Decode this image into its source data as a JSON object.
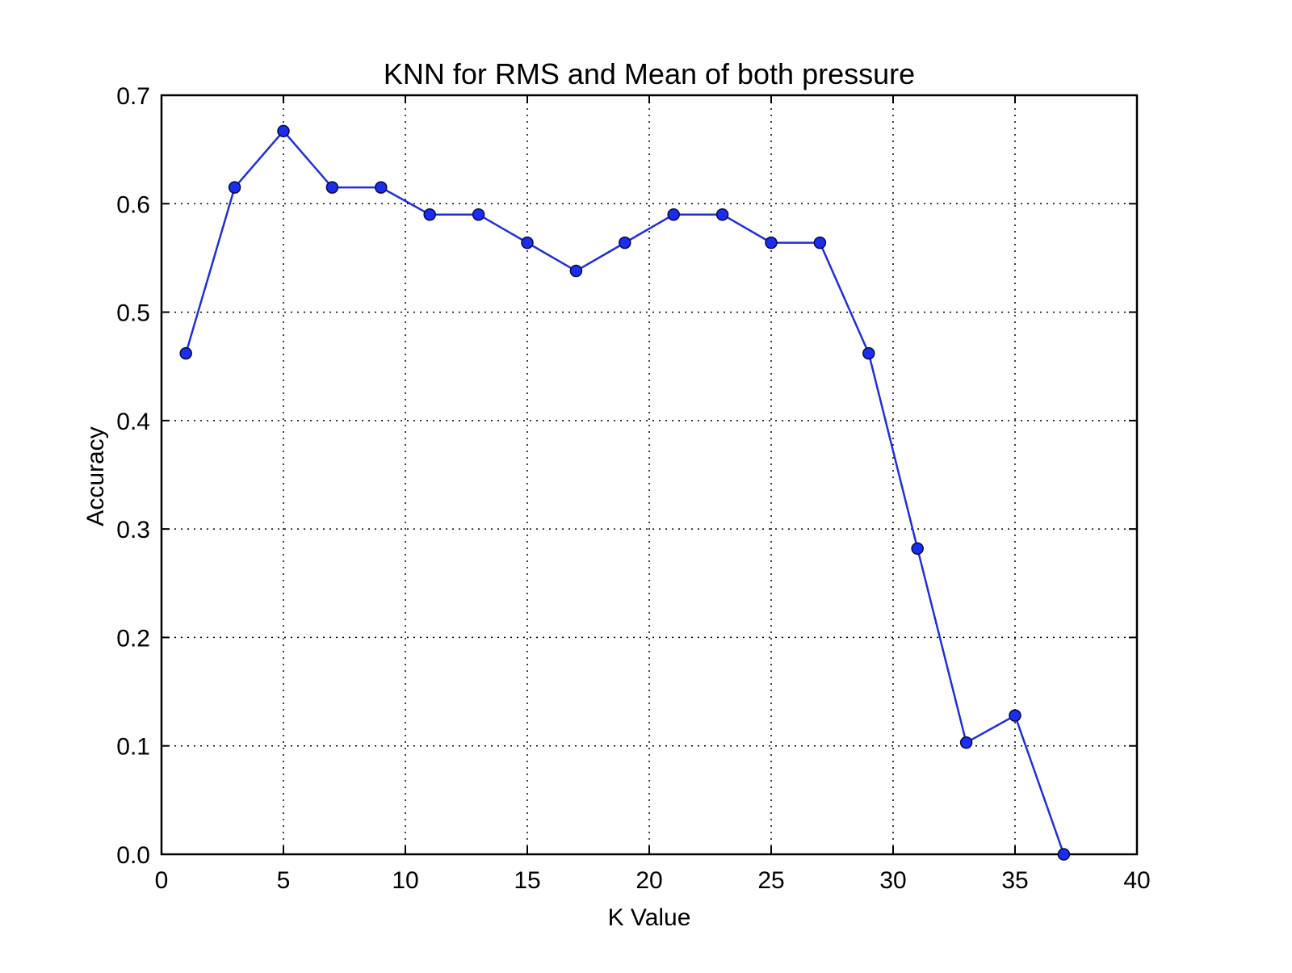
{
  "chart_data": {
    "type": "line",
    "title": "KNN for RMS and Mean of both pressure",
    "xlabel": "K Value",
    "ylabel": "Accuracy",
    "xlim": [
      0,
      40
    ],
    "ylim": [
      0,
      0.7
    ],
    "xticks": [
      "0",
      "5",
      "10",
      "15",
      "20",
      "25",
      "30",
      "35",
      "40"
    ],
    "yticks": [
      "0.0",
      "0.1",
      "0.2",
      "0.3",
      "0.4",
      "0.5",
      "0.6",
      "0.7"
    ],
    "grid": true,
    "series_color": "#1f2fd8",
    "marker_color": "#1a2ef0",
    "series": [
      {
        "x": [
          1,
          3,
          5,
          7,
          9,
          11,
          13,
          15,
          17,
          19,
          21,
          23,
          25,
          27,
          29,
          31,
          33,
          35,
          37
        ],
        "values": [
          0.462,
          0.615,
          0.667,
          0.615,
          0.615,
          0.59,
          0.59,
          0.564,
          0.538,
          0.564,
          0.59,
          0.59,
          0.564,
          0.564,
          0.462,
          0.282,
          0.103,
          0.128,
          0.0
        ]
      }
    ]
  }
}
